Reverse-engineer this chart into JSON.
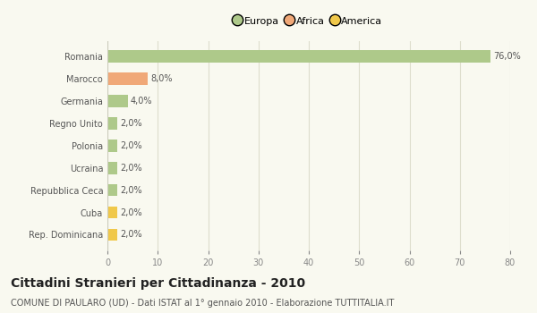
{
  "categories": [
    "Romania",
    "Marocco",
    "Germania",
    "Regno Unito",
    "Polonia",
    "Ucraina",
    "Repubblica Ceca",
    "Cuba",
    "Rep. Dominicana"
  ],
  "values": [
    76.0,
    8.0,
    4.0,
    2.0,
    2.0,
    2.0,
    2.0,
    2.0,
    2.0
  ],
  "colors": [
    "#aec98a",
    "#f0a878",
    "#aec98a",
    "#aec98a",
    "#aec98a",
    "#aec98a",
    "#aec98a",
    "#f0c84a",
    "#f0c84a"
  ],
  "labels": [
    "76,0%",
    "8,0%",
    "4,0%",
    "2,0%",
    "2,0%",
    "2,0%",
    "2,0%",
    "2,0%",
    "2,0%"
  ],
  "legend_labels": [
    "Europa",
    "Africa",
    "America"
  ],
  "legend_colors": [
    "#aec98a",
    "#f0a878",
    "#f0c84a"
  ],
  "title": "Cittadini Stranieri per Cittadinanza - 2010",
  "subtitle": "COMUNE DI PAULARO (UD) - Dati ISTAT al 1° gennaio 2010 - Elaborazione TUTTITALIA.IT",
  "xlim": [
    0,
    80
  ],
  "xticks": [
    0,
    10,
    20,
    30,
    40,
    50,
    60,
    70,
    80
  ],
  "background_color": "#f9f9f0",
  "grid_color": "#ddddcc",
  "bar_height": 0.55,
  "title_fontsize": 10,
  "subtitle_fontsize": 7,
  "label_fontsize": 7,
  "tick_fontsize": 7,
  "legend_fontsize": 8
}
